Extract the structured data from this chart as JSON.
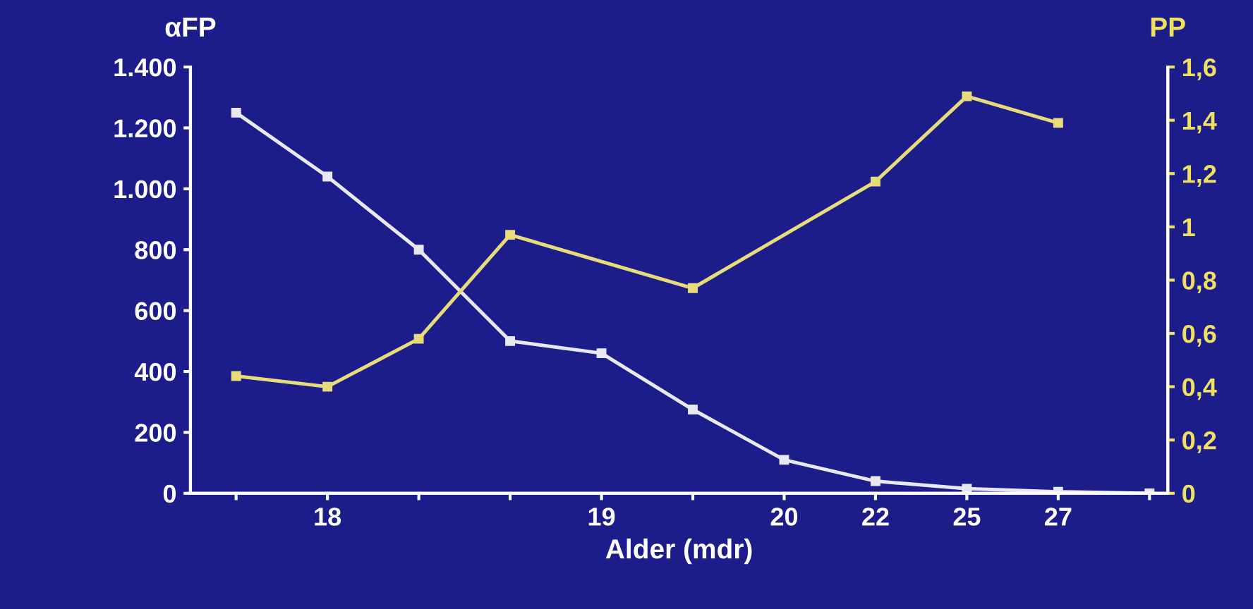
{
  "chart_data": {
    "type": "line",
    "xlabel": "Alder (mdr)",
    "ylabel": "αFP",
    "y2label": "PP",
    "categories": [
      null,
      "18",
      null,
      null,
      "19",
      null,
      "20",
      "22",
      "25",
      "27",
      null
    ],
    "series": [
      {
        "color": "#e8e8f0",
        "values": [
          1250,
          1040,
          800,
          500,
          460,
          275,
          110,
          40,
          15,
          5,
          0
        ]
      },
      {
        "color": "#e8dc7a",
        "axis": "y2",
        "values": [
          0.44,
          0.4,
          0.58,
          0.97,
          null,
          0.77,
          null,
          1.17,
          1.49,
          1.39,
          null
        ]
      }
    ],
    "ylim": [
      0,
      1400
    ],
    "yticks": [
      0,
      200,
      400,
      600,
      800,
      {
        "value": 1000,
        "label": "1.000"
      },
      {
        "value": 1200,
        "label": "1.200"
      },
      {
        "value": 1400,
        "label": "1.400"
      }
    ],
    "y2lim": [
      0,
      1.6
    ],
    "y2ticks": [
      0,
      {
        "value": 0.2,
        "label": "0,2"
      },
      {
        "value": 0.4,
        "label": "0,4"
      },
      {
        "value": 0.6,
        "label": "0,6"
      },
      {
        "value": 0.8,
        "label": "0,8"
      },
      1,
      {
        "value": 1.2,
        "label": "1,2"
      },
      {
        "value": 1.4,
        "label": "1,4"
      },
      {
        "value": 1.6,
        "label": "1,6"
      }
    ],
    "marker": "square",
    "grid": false
  }
}
